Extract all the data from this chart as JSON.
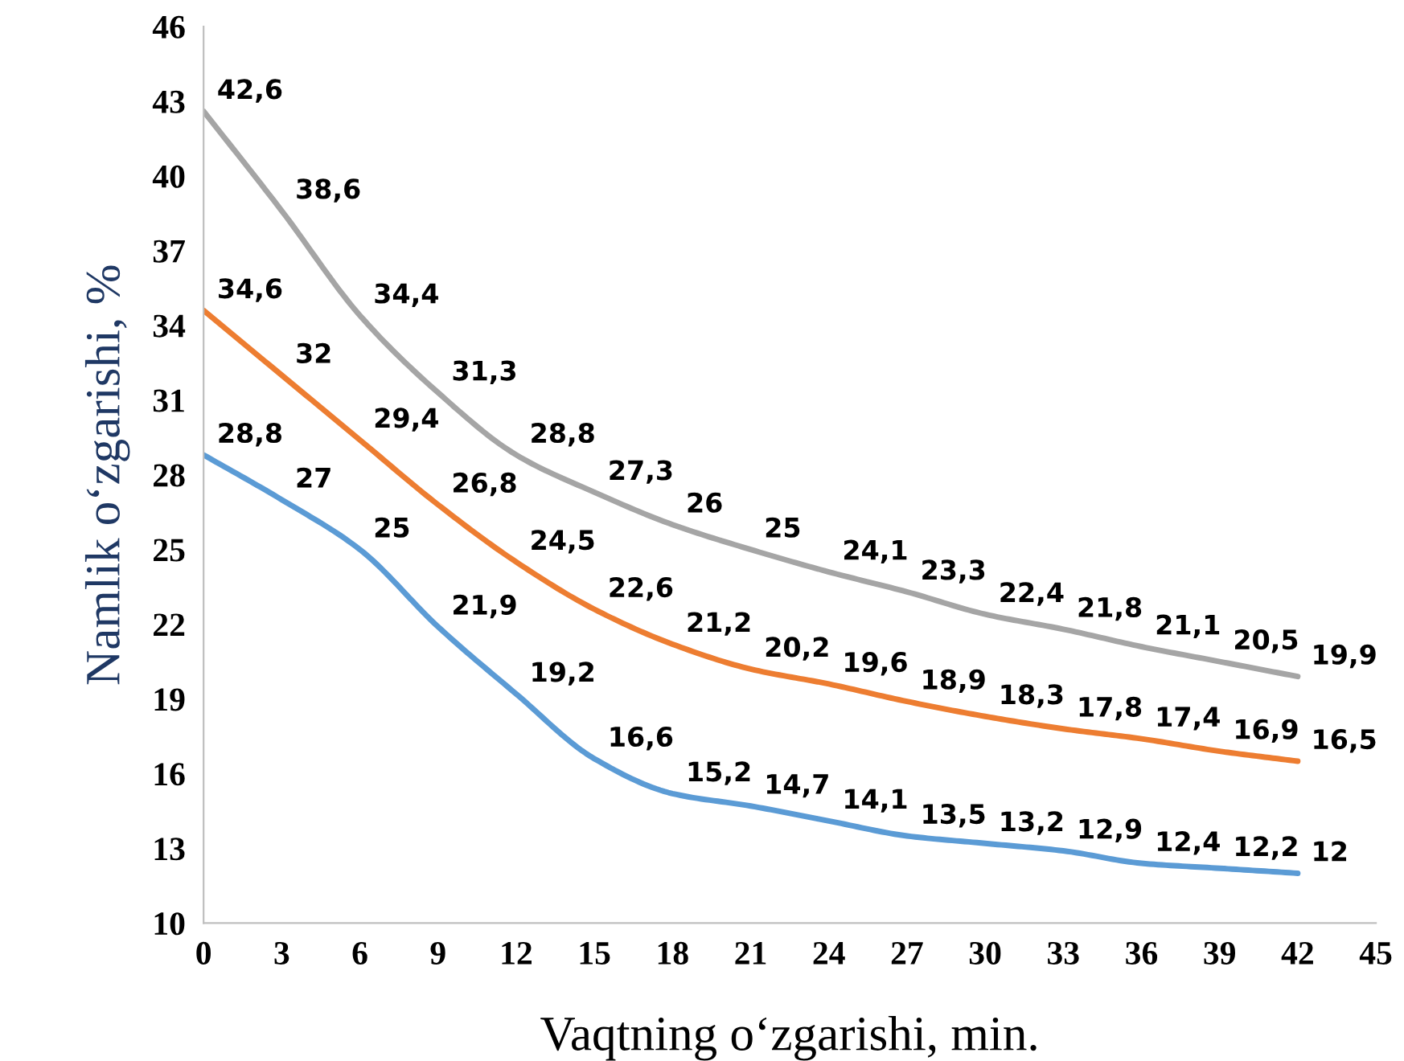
{
  "chart_data": {
    "type": "line",
    "xlabel": "Vaqtning o‘zgarishi, min.",
    "ylabel": "Namlik o‘zgarishi, %",
    "x": [
      0,
      3,
      6,
      9,
      12,
      15,
      18,
      21,
      24,
      27,
      30,
      33,
      36,
      39,
      42
    ],
    "xlim": [
      0,
      45
    ],
    "xticks": [
      0,
      3,
      6,
      9,
      12,
      15,
      18,
      21,
      24,
      27,
      30,
      33,
      36,
      39,
      42,
      45
    ],
    "ylim": [
      10,
      46
    ],
    "yticks": [
      10,
      13,
      16,
      19,
      22,
      25,
      28,
      31,
      34,
      37,
      40,
      43,
      46
    ],
    "grid": false,
    "legend": false,
    "marker": "none",
    "line_style": "solid",
    "series": [
      {
        "color": "#a5a5a5",
        "values": [
          42.6,
          38.6,
          34.4,
          31.3,
          28.8,
          27.3,
          26,
          25,
          24.1,
          23.3,
          22.4,
          21.8,
          21.1,
          20.5,
          19.9
        ],
        "value_labels": [
          "42,6",
          "38,6",
          "34,4",
          "31,3",
          "28,8",
          "27,3",
          "26",
          "25",
          "24,1",
          "23,3",
          "22,4",
          "21,8",
          "21,1",
          "20,5",
          "19,9"
        ]
      },
      {
        "color": "#ed7d31",
        "values": [
          34.6,
          32,
          29.4,
          26.8,
          24.5,
          22.6,
          21.2,
          20.2,
          19.6,
          18.9,
          18.3,
          17.8,
          17.4,
          16.9,
          16.5
        ],
        "value_labels": [
          "34,6",
          "32",
          "29,4",
          "26,8",
          "24,5",
          "22,6",
          "21,2",
          "20,2",
          "19,6",
          "18,9",
          "18,3",
          "17,8",
          "17,4",
          "16,9",
          "16,5"
        ]
      },
      {
        "color": "#5b9bd5",
        "values": [
          28.8,
          27,
          25,
          21.9,
          19.2,
          16.6,
          15.2,
          14.7,
          14.1,
          13.5,
          13.2,
          12.9,
          12.4,
          12.2,
          12
        ],
        "value_labels": [
          "28,8",
          "27",
          "25",
          "21,9",
          "19,2",
          "16,6",
          "15,2",
          "14,7",
          "14,1",
          "13,5",
          "13,2",
          "12,9",
          "12,4",
          "12,2",
          "12"
        ]
      }
    ]
  }
}
